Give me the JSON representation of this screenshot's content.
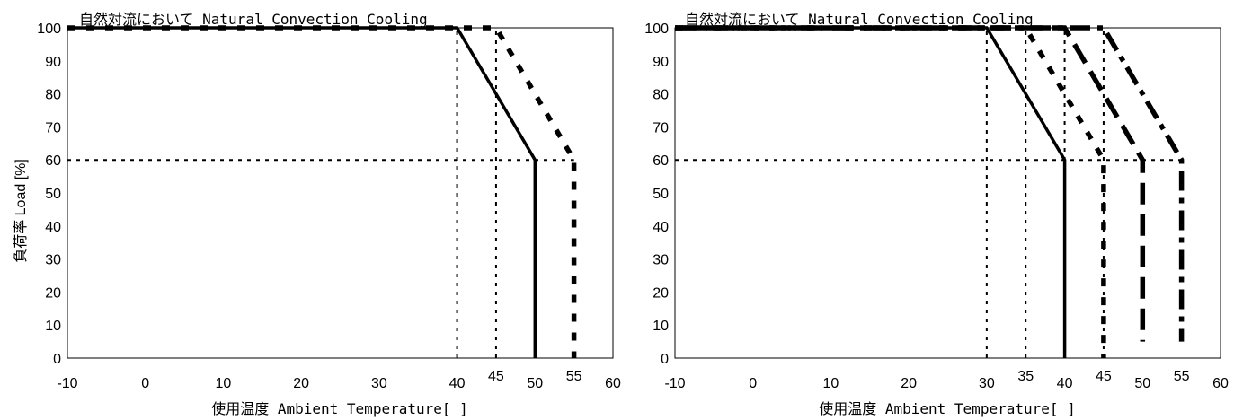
{
  "chart_data": [
    {
      "type": "line",
      "title": "自然対流において Natural Convection Cooling",
      "xlabel": "使用温度  Ambient Temperature[  ]",
      "ylabel": "負荷率  Load [%]",
      "xlim": [
        -10,
        60
      ],
      "ylim": [
        0,
        100
      ],
      "x_ticks": [
        "-10",
        "0",
        "10",
        "20",
        "30",
        "40",
        "50",
        "60"
      ],
      "y_ticks": [
        "0",
        "10",
        "20",
        "30",
        "40",
        "50",
        "60",
        "70",
        "80",
        "90",
        "100"
      ],
      "extra_x_labels": [
        "45",
        "55"
      ],
      "grid": false,
      "series": [
        {
          "style": "solid",
          "points": [
            [
              -10,
              100
            ],
            [
              40,
              100
            ],
            [
              50,
              60
            ],
            [
              50,
              0
            ]
          ]
        },
        {
          "style": "dotted-dash",
          "points": [
            [
              -10,
              100
            ],
            [
              45,
              100
            ],
            [
              55,
              60
            ],
            [
              55,
              0
            ]
          ]
        }
      ],
      "reference_lines": [
        {
          "x": 40,
          "y_range": [
            0,
            100
          ]
        },
        {
          "x": 45,
          "y_range": [
            0,
            100
          ]
        },
        {
          "y": 60,
          "x_range": [
            -10,
            55
          ]
        }
      ]
    },
    {
      "type": "line",
      "title": "自然対流において Natural Convection Cooling",
      "xlabel": "使用温度  Ambient Temperature[  ]",
      "ylabel": "",
      "xlim": [
        -10,
        60
      ],
      "ylim": [
        0,
        100
      ],
      "x_ticks": [
        "-10",
        "0",
        "10",
        "20",
        "30",
        "40",
        "50",
        "60"
      ],
      "y_ticks": [
        "0",
        "10",
        "20",
        "30",
        "40",
        "50",
        "60",
        "70",
        "80",
        "90",
        "100"
      ],
      "extra_x_labels": [
        "35",
        "45",
        "55"
      ],
      "grid": false,
      "series": [
        {
          "style": "solid",
          "points": [
            [
              -10,
              100
            ],
            [
              30,
              100
            ],
            [
              40,
              60
            ],
            [
              40,
              0
            ]
          ]
        },
        {
          "style": "dotted-dash",
          "points": [
            [
              -10,
              100
            ],
            [
              35,
              100
            ],
            [
              45,
              60
            ],
            [
              45,
              0
            ]
          ]
        },
        {
          "style": "long-dash",
          "points": [
            [
              -10,
              100
            ],
            [
              40,
              100
            ],
            [
              50,
              60
            ],
            [
              50,
              5
            ]
          ]
        },
        {
          "style": "dash-dot",
          "points": [
            [
              -10,
              100
            ],
            [
              45,
              100
            ],
            [
              55,
              60
            ],
            [
              55,
              5
            ]
          ]
        }
      ],
      "reference_lines": [
        {
          "x": 30,
          "y_range": [
            0,
            100
          ]
        },
        {
          "x": 35,
          "y_range": [
            0,
            100
          ]
        },
        {
          "x": 40,
          "y_range": [
            0,
            100
          ]
        },
        {
          "x": 45,
          "y_range": [
            0,
            100
          ]
        },
        {
          "y": 60,
          "x_range": [
            -10,
            55
          ]
        }
      ]
    }
  ]
}
